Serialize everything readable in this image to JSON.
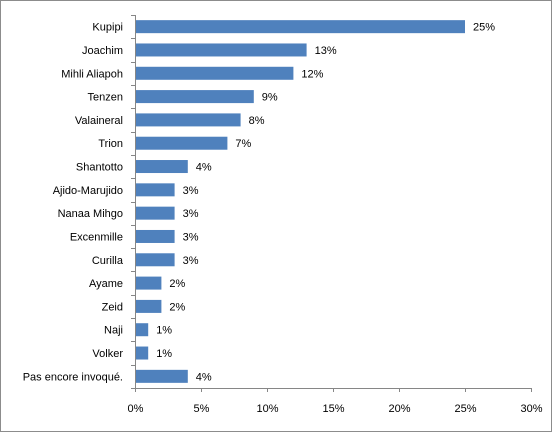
{
  "chart_data": {
    "type": "bar",
    "orientation": "horizontal",
    "categories": [
      "Kupipi",
      "Joachim",
      "Mihli Aliapoh",
      "Tenzen",
      "Valaineral",
      "Trion",
      "Shantotto",
      "Ajido-Marujido",
      "Nanaa Mihgo",
      "Excenmille",
      "Curilla",
      "Ayame",
      "Zeid",
      "Naji",
      "Volker",
      "Pas encore invoqué."
    ],
    "values": [
      25,
      13,
      12,
      9,
      8,
      7,
      4,
      3,
      3,
      3,
      3,
      2,
      2,
      1,
      1,
      4
    ],
    "data_labels": [
      "25%",
      "13%",
      "12%",
      "9%",
      "8%",
      "7%",
      "4%",
      "3%",
      "3%",
      "3%",
      "3%",
      "2%",
      "2%",
      "1%",
      "1%",
      "4%"
    ],
    "xlim": [
      0,
      30
    ],
    "x_ticks": [
      "0%",
      "5%",
      "10%",
      "15%",
      "20%",
      "25%",
      "30%"
    ],
    "grid": false,
    "legend": "none",
    "bar_color": "#4f81bd",
    "title": "",
    "xlabel": "",
    "ylabel": ""
  }
}
